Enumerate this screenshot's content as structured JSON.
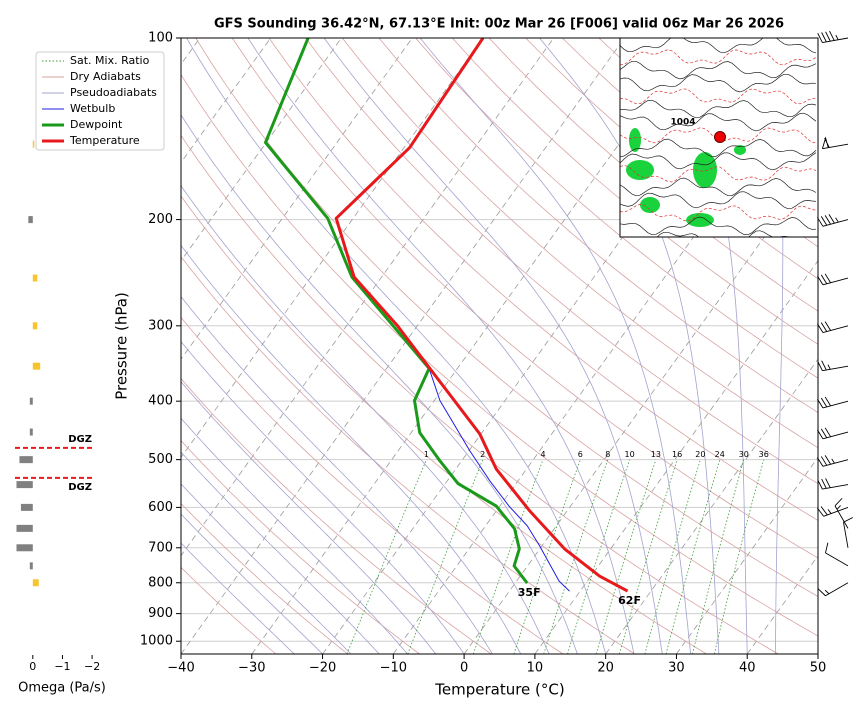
{
  "chart_data": [
    {
      "type": "skewt",
      "title": "GFS Sounding 36.42°N, 67.13°E Init: 00z Mar 26 [F006] valid 06z Mar 26 2026",
      "x_label": "Temperature (°C)",
      "y_label": "Pressure (hPa)",
      "xlim": [
        -40,
        50
      ],
      "ylim": [
        1050,
        100
      ],
      "log_y": true,
      "xticks": [
        {
          "value": -40,
          "label": "−40"
        },
        {
          "value": -30,
          "label": "−30"
        },
        {
          "value": -20,
          "label": "−20"
        },
        {
          "value": -10,
          "label": "−10"
        },
        0,
        10,
        20,
        30,
        40,
        50
      ],
      "yticks": [
        100,
        200,
        300,
        400,
        500,
        600,
        700,
        800,
        900,
        1000
      ],
      "grid": true,
      "legend": "upper left",
      "reference_lines": [
        {
          "name": "Sat. Mix. Ratio",
          "color": "#3a9a3a"
        },
        {
          "name": "Dry Adiabats",
          "color": "#d9a3a3"
        },
        {
          "name": "Pseudoadiabats",
          "color": "#a3a3cf"
        }
      ],
      "mixing_ratios": [
        1,
        2,
        4,
        6,
        8,
        10,
        13,
        16,
        20,
        24,
        30,
        36
      ],
      "series": [
        {
          "name": "Wetbulb",
          "color": "#1f1fe0",
          "pressure": [
            826,
            795,
            694,
            644,
            597,
            542,
            483,
            399,
            353
          ],
          "values": [
            8.5,
            6.0,
            -0.4,
            -4.1,
            -8.7,
            -14.0,
            -19.9,
            -29.2,
            -34.0
          ]
        },
        {
          "name": "Dewpoint",
          "color": "#1a9a1a",
          "pressure": [
            801,
            750,
            703,
            651,
            597,
            548,
            502,
            451,
            399,
            353,
            249,
            199,
            149,
            100
          ],
          "values": [
            1.7,
            -1.9,
            -2.9,
            -5.6,
            -10.5,
            -18.2,
            -23.1,
            -28.8,
            -32.8,
            -34.0,
            -54.2,
            -63.6,
            -80.1,
            -84.7
          ],
          "value_labels": [
            "35F",
            null,
            null,
            null,
            null,
            null,
            null,
            null,
            null,
            null,
            null,
            null,
            null,
            null
          ]
        },
        {
          "name": "Temperature",
          "color": "#e8191c",
          "pressure": [
            826,
            780,
            703,
            608,
            518,
            453,
            353,
            300,
            249,
            199,
            152,
            100
          ],
          "values": [
            16.7,
            11.2,
            3.5,
            -5.3,
            -14.3,
            -20.2,
            -33.9,
            -42.8,
            -53.9,
            -62.4,
            -59.2,
            -60.0
          ],
          "value_labels": [
            "62F",
            null,
            null,
            null,
            null,
            null,
            null,
            null,
            null,
            null,
            null,
            null
          ]
        }
      ],
      "wind_barbs": {
        "pressure": [
          100,
          150,
          200,
          250,
          300,
          350,
          400,
          450,
          500,
          550,
          600,
          650,
          700,
          750,
          800
        ],
        "speed": [
          45,
          60,
          45,
          30,
          30,
          25,
          30,
          30,
          35,
          30,
          25,
          15,
          10,
          10,
          15
        ],
        "direction": [
          260,
          260,
          255,
          255,
          255,
          260,
          255,
          255,
          255,
          260,
          250,
          330,
          350,
          300,
          240
        ]
      },
      "map_labels": [
        "1004"
      ]
    },
    {
      "type": "omega-bar",
      "x_label": "Omega (Pa/s)",
      "xlim": [
        0.6,
        -2.3
      ],
      "xticks": [
        0,
        {
          "value": -1,
          "label": "−1"
        },
        {
          "value": -2,
          "label": "−2"
        }
      ],
      "positive_color": "#808080",
      "negative_color": "#f7c52b",
      "pressure": [
        150,
        200,
        250,
        300,
        350,
        400,
        450,
        500,
        550,
        600,
        650,
        700,
        750,
        800
      ],
      "values": [
        -0.05,
        0.15,
        -0.15,
        -0.15,
        -0.25,
        0.1,
        0.1,
        0.45,
        0.55,
        0.4,
        0.55,
        0.55,
        0.1,
        -0.2
      ],
      "dgz": [
        {
          "pressure": 478,
          "label": "DGZ"
        },
        {
          "pressure": 536,
          "label": "DGZ"
        }
      ],
      "dgz_color": "#e8191c"
    }
  ]
}
